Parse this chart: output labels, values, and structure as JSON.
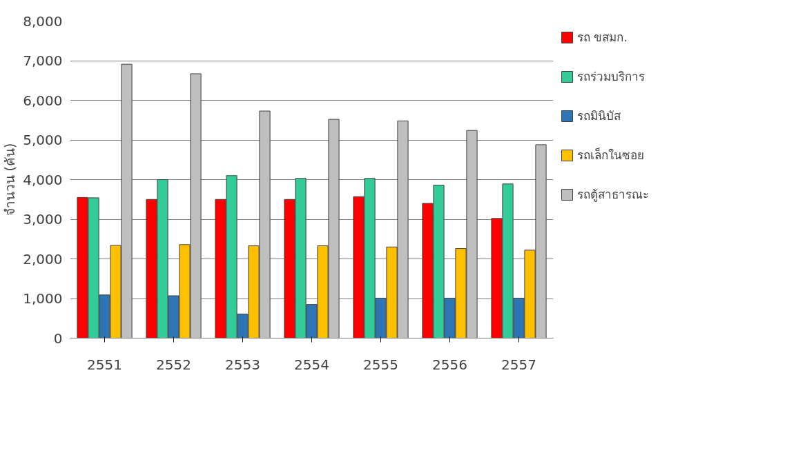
{
  "chart_data": {
    "type": "bar",
    "ylabel": "จำนวน (คัน)",
    "categories": [
      "2551",
      "2552",
      "2553",
      "2554",
      "2555",
      "2556",
      "2557"
    ],
    "series": [
      {
        "name": "รถ ขสมก.",
        "color": "#ff0000",
        "values": [
          3550,
          3500,
          3500,
          3500,
          3570,
          3400,
          3020
        ]
      },
      {
        "name": "รถร่วมบริการ",
        "color": "#33cc99",
        "values": [
          3540,
          4000,
          4100,
          4030,
          4030,
          3860,
          3890
        ]
      },
      {
        "name": "รถมินิบัส",
        "color": "#2e75b6",
        "values": [
          1090,
          1070,
          610,
          850,
          1010,
          1010,
          1010
        ]
      },
      {
        "name": "รถเล็กในซอย",
        "color": "#ffc000",
        "values": [
          2340,
          2360,
          2330,
          2330,
          2300,
          2260,
          2220
        ]
      },
      {
        "name": "รถตู้สาธารณะ",
        "color": "#bfbfbf",
        "values": [
          6910,
          6670,
          5730,
          5520,
          5480,
          5240,
          4880
        ]
      }
    ],
    "ylim": [
      0,
      8000
    ],
    "yticks": [
      {
        "value": 0,
        "label": "0"
      },
      {
        "value": 1000,
        "label": "1,000"
      },
      {
        "value": 2000,
        "label": "2,000"
      },
      {
        "value": 3000,
        "label": "3,000"
      },
      {
        "value": 4000,
        "label": "4,000"
      },
      {
        "value": 5000,
        "label": "5,000"
      },
      {
        "value": 6000,
        "label": "6,000"
      },
      {
        "value": 7000,
        "label": "7,000"
      },
      {
        "value": 8000,
        "label": "8,000"
      }
    ],
    "grid": "y",
    "legend": "right"
  }
}
